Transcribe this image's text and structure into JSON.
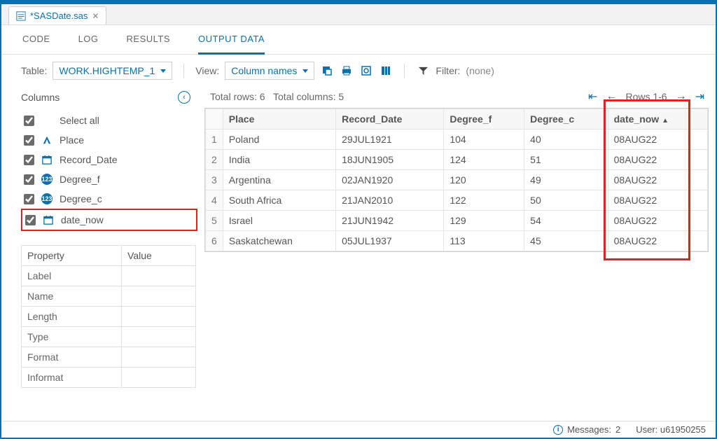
{
  "colors": {
    "accent": "#0971ad",
    "highlight": "#e2231a",
    "border": "#e0e0e0",
    "text": "#555555"
  },
  "file_tab": {
    "title": "*SASDate.sas"
  },
  "subtabs": {
    "code": "CODE",
    "log": "LOG",
    "results": "RESULTS",
    "output_data": "OUTPUT DATA",
    "active": "output_data"
  },
  "toolbar": {
    "table_label": "Table:",
    "table_value": "WORK.HIGHTEMP_1",
    "view_label": "View:",
    "view_value": "Column names",
    "filter_label": "Filter:",
    "filter_value": "(none)"
  },
  "left": {
    "columns_header": "Columns",
    "select_all": "Select all",
    "items": [
      {
        "name": "Place",
        "type": "char"
      },
      {
        "name": "Record_Date",
        "type": "date"
      },
      {
        "name": "Degree_f",
        "type": "num"
      },
      {
        "name": "Degree_c",
        "type": "num"
      },
      {
        "name": "date_now",
        "type": "date",
        "highlight": true
      }
    ],
    "property_header": "Property",
    "value_header": "Value",
    "properties": [
      "Label",
      "Name",
      "Length",
      "Type",
      "Format",
      "Informat"
    ]
  },
  "table_meta": {
    "total_rows_label": "Total rows: 6",
    "total_cols_label": "Total columns: 5",
    "rows_range": "Rows 1-6"
  },
  "data": {
    "columns": [
      {
        "name": "Place",
        "align": "left"
      },
      {
        "name": "Record_Date",
        "align": "left"
      },
      {
        "name": "Degree_f",
        "align": "right"
      },
      {
        "name": "Degree_c",
        "align": "right"
      },
      {
        "name": "date_now",
        "align": "left",
        "sorted": "asc"
      }
    ],
    "rows": [
      [
        "Poland",
        "29JUL1921",
        104,
        40,
        "08AUG22"
      ],
      [
        "India",
        "18JUN1905",
        124,
        51,
        "08AUG22"
      ],
      [
        "Argentina",
        "02JAN1920",
        120,
        49,
        "08AUG22"
      ],
      [
        "South Africa",
        "21JAN2010",
        122,
        50,
        "08AUG22"
      ],
      [
        "Israel",
        "21JUN1942",
        129,
        54,
        "08AUG22"
      ],
      [
        "Saskatchewan",
        "05JUL1937",
        113,
        45,
        "08AUG22"
      ]
    ]
  },
  "status": {
    "messages_label": "Messages:",
    "messages_count": 2,
    "user_label": "User:",
    "user_value": "u61950255"
  }
}
